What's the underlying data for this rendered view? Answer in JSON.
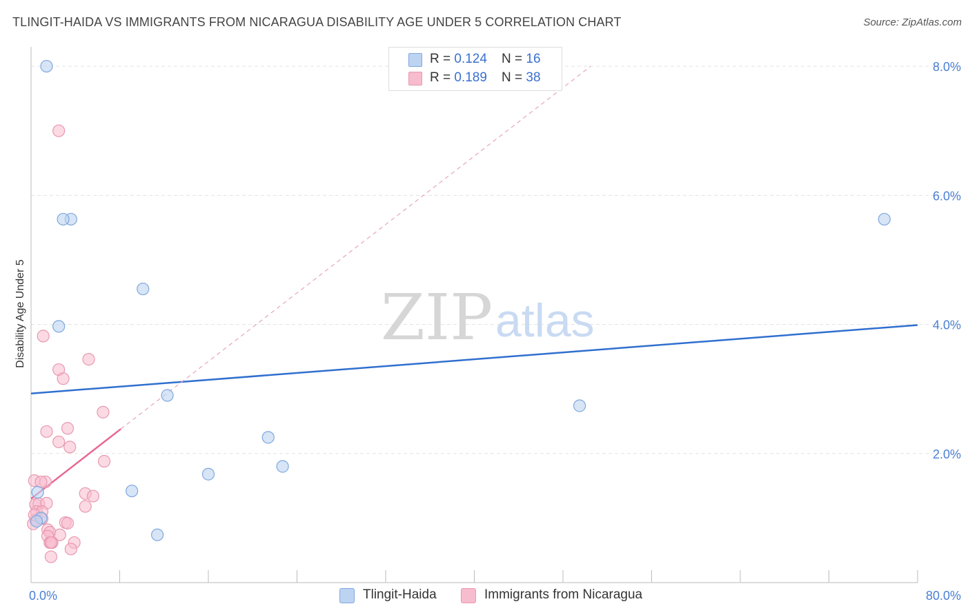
{
  "title": "TLINGIT-HAIDA VS IMMIGRANTS FROM NICARAGUA DISABILITY AGE UNDER 5 CORRELATION CHART",
  "source": "Source: ZipAtlas.com",
  "watermark": {
    "zip": "ZIP",
    "atlas": "atlas"
  },
  "legend": {
    "row1": {
      "r_label": "R = ",
      "r_value": "0.124",
      "n_label": "N = ",
      "n_value": "16"
    },
    "row2": {
      "r_label": "R = ",
      "r_value": "0.189",
      "n_label": "N = ",
      "n_value": "38"
    }
  },
  "colors": {
    "blue": "#2f6fcf",
    "blue_fill": "#bcd3f2",
    "pink": "#e8668f",
    "pink_fill": "#f7bccd",
    "grid": "#e3e3e3"
  },
  "chart_data": {
    "type": "scatter",
    "title": "TLINGIT-HAIDA VS IMMIGRANTS FROM NICARAGUA DISABILITY AGE UNDER 5 CORRELATION CHART",
    "xlabel": "",
    "ylabel": "Disability Age Under 5",
    "xlim": [
      0,
      80
    ],
    "ylim": [
      0,
      8.3
    ],
    "x_tick_labels": [
      "0.0%",
      "80.0%"
    ],
    "y_ticks": [
      2,
      4,
      6,
      8
    ],
    "y_tick_labels": [
      "2.0%",
      "4.0%",
      "6.0%",
      "8.0%"
    ],
    "series": [
      {
        "name": "Tlingit-Haida",
        "color": "#2f6fcf",
        "points": [
          [
            1.4,
            8.0
          ],
          [
            3.6,
            5.63
          ],
          [
            2.9,
            5.63
          ],
          [
            2.5,
            3.97
          ],
          [
            10.1,
            4.55
          ],
          [
            12.3,
            2.9
          ],
          [
            21.4,
            2.25
          ],
          [
            22.7,
            1.8
          ],
          [
            16.0,
            1.68
          ],
          [
            9.1,
            1.42
          ],
          [
            0.6,
            1.4
          ],
          [
            0.9,
            1.0
          ],
          [
            0.5,
            0.95
          ],
          [
            11.4,
            0.74
          ],
          [
            49.5,
            2.74
          ],
          [
            77.0,
            5.63
          ]
        ],
        "trend": {
          "x": [
            0,
            80
          ],
          "y": [
            2.93,
            3.99
          ]
        }
      },
      {
        "name": "Immigrants from Nicaragua",
        "color": "#e8668f",
        "points": [
          [
            2.5,
            7.0
          ],
          [
            1.1,
            3.82
          ],
          [
            5.2,
            3.46
          ],
          [
            2.5,
            3.3
          ],
          [
            2.9,
            3.16
          ],
          [
            6.5,
            2.64
          ],
          [
            3.3,
            2.39
          ],
          [
            1.4,
            2.34
          ],
          [
            2.5,
            2.18
          ],
          [
            3.5,
            2.1
          ],
          [
            6.6,
            1.88
          ],
          [
            0.3,
            1.58
          ],
          [
            1.3,
            1.56
          ],
          [
            0.9,
            1.56
          ],
          [
            4.9,
            1.38
          ],
          [
            5.6,
            1.34
          ],
          [
            4.9,
            1.18
          ],
          [
            0.4,
            1.21
          ],
          [
            0.7,
            1.22
          ],
          [
            1.4,
            1.23
          ],
          [
            0.5,
            1.1
          ],
          [
            1.0,
            1.1
          ],
          [
            0.4,
            0.97
          ],
          [
            1.0,
            0.99
          ],
          [
            3.1,
            0.93
          ],
          [
            3.3,
            0.92
          ],
          [
            0.2,
            0.91
          ],
          [
            1.5,
            0.82
          ],
          [
            1.7,
            0.78
          ],
          [
            2.6,
            0.74
          ],
          [
            1.5,
            0.72
          ],
          [
            1.7,
            0.62
          ],
          [
            1.9,
            0.62
          ],
          [
            3.9,
            0.62
          ],
          [
            1.8,
            0.62
          ],
          [
            3.6,
            0.52
          ],
          [
            1.8,
            0.4
          ],
          [
            0.3,
            1.05
          ]
        ],
        "trend": {
          "x": [
            0,
            8.1
          ],
          "y": [
            1.3,
            2.38
          ]
        },
        "trend_extension": {
          "x": [
            8.1,
            50.5
          ],
          "y": [
            2.38,
            8.0
          ]
        }
      }
    ]
  }
}
